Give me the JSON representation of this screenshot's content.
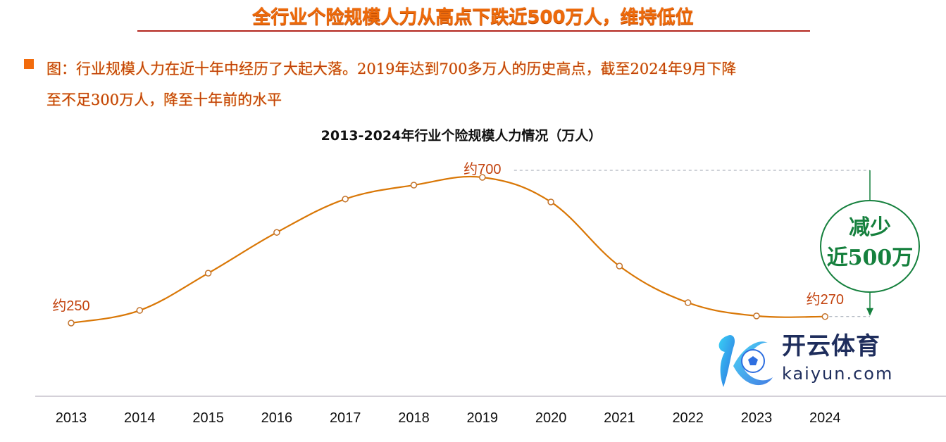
{
  "headline": "全行业个险规模人力从高点下跌近500万人，维持低位",
  "bullet": {
    "line1": "图：行业规模人力在近十年中经历了大起大落。2019年达到700多万人的历史高点，截至2024年9月下降",
    "line2": "至不足300万人，降至十年前的水平"
  },
  "colors": {
    "headline": "#ee6a0a",
    "rule": "#b3261e",
    "bullet": "#f26b0c",
    "line": "#d97706",
    "callout": "#15803d",
    "axis": "#cccccc"
  },
  "chart_data": {
    "type": "line",
    "title": "2013-2024年行业个险规模人力情况（万人）",
    "xlabel": "",
    "ylabel": "",
    "categories": [
      "2013",
      "2014",
      "2015",
      "2016",
      "2017",
      "2018",
      "2019",
      "2020",
      "2021",
      "2022",
      "2023",
      "2024"
    ],
    "series": [
      {
        "name": "个险规模人力（万人）",
        "values": [
          250,
          289,
          404,
          530,
          633,
          676,
          700,
          624,
          426,
          313,
          272,
          270
        ]
      }
    ],
    "ylim": [
      0,
      800
    ],
    "grid": false,
    "legend": "none",
    "data_labels": [
      {
        "category": "2013",
        "text": "约250"
      },
      {
        "category": "2019",
        "text": "约700"
      },
      {
        "category": "2024",
        "text": "约270"
      }
    ],
    "annotation": {
      "line1": "减少",
      "line2": "近500万",
      "from_value": 700,
      "to_value": 270
    }
  },
  "watermark": {
    "cn": "开云体育",
    "en": "kaiyun.com"
  }
}
